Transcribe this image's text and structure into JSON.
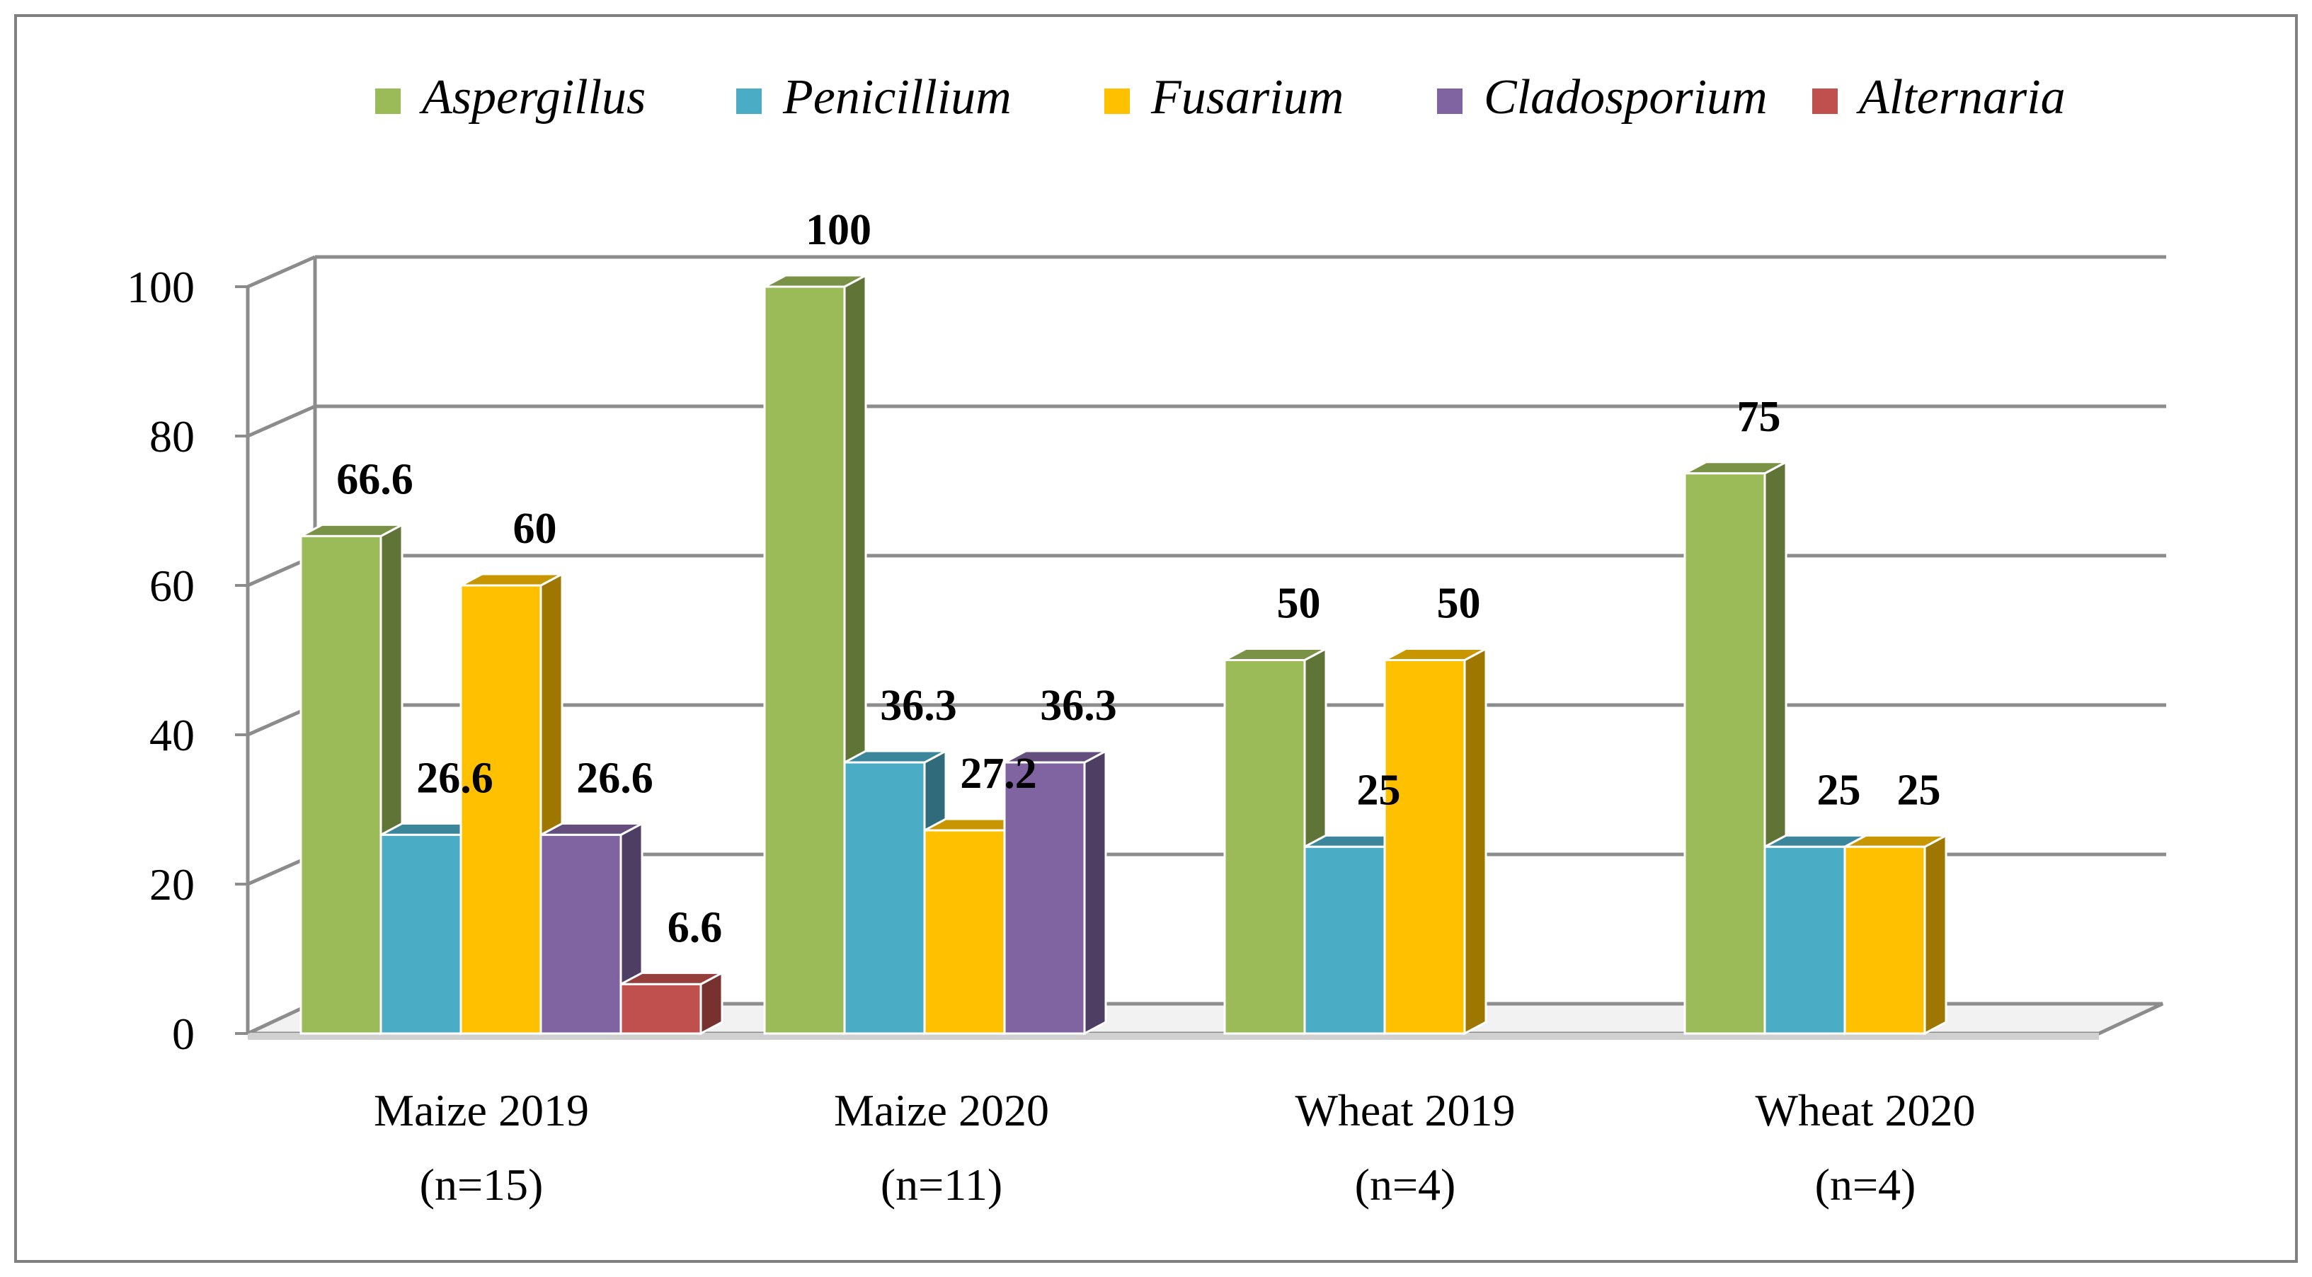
{
  "chart_data": {
    "type": "bar",
    "style": "3d-clustered-column",
    "categories": [
      [
        "Maize 2019",
        "(n=15)"
      ],
      [
        "Maize 2020",
        "(n=11)"
      ],
      [
        "Wheat 2019",
        "(n=4)"
      ],
      [
        "Wheat 2020",
        "(n=4)"
      ]
    ],
    "series": [
      {
        "name": "Aspergillus",
        "color": "#9BBB59",
        "values": [
          66.6,
          100,
          50,
          75
        ]
      },
      {
        "name": "Penicillium",
        "color": "#4BACC6",
        "values": [
          26.6,
          36.3,
          25,
          25
        ]
      },
      {
        "name": "Fusarium",
        "color": "#FFC000",
        "values": [
          60,
          27.2,
          50,
          25
        ]
      },
      {
        "name": "Cladosporium",
        "color": "#8064A2",
        "values": [
          26.6,
          36.3,
          null,
          null
        ]
      },
      {
        "name": "Alternaria",
        "color": "#C0504D",
        "values": [
          6.6,
          null,
          null,
          null
        ]
      }
    ],
    "data_labels": [
      [
        "66.6",
        "26.6",
        "60",
        "26.6",
        "6.6"
      ],
      [
        "100",
        "36.3",
        "27.2",
        "36.3",
        ""
      ],
      [
        "50",
        "25",
        "50",
        "",
        ""
      ],
      [
        "75",
        "25",
        "25",
        "",
        ""
      ]
    ],
    "ylim": [
      0,
      100
    ],
    "yticks": [
      "0",
      "20",
      "40",
      "60",
      "80",
      "100"
    ],
    "grid": true,
    "legend_position": "top",
    "title": "",
    "xlabel": "",
    "ylabel": ""
  }
}
